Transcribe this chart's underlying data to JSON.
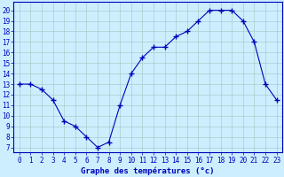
{
  "hours": [
    0,
    1,
    2,
    3,
    4,
    5,
    6,
    7,
    8,
    9,
    10,
    11,
    12,
    13,
    14,
    15,
    16,
    17,
    18,
    19,
    20,
    21,
    22,
    23
  ],
  "temps": [
    13,
    13,
    12.5,
    11.5,
    9.5,
    9,
    8,
    7,
    7.5,
    11,
    14,
    15.5,
    16.5,
    16.5,
    17.5,
    18,
    19,
    20,
    20,
    20,
    19,
    17,
    13,
    11.5
  ],
  "xlabel": "Graphe des températures (°c)",
  "ylabel_ticks": [
    7,
    8,
    9,
    10,
    11,
    12,
    13,
    14,
    15,
    16,
    17,
    18,
    19,
    20
  ],
  "ylim": [
    6.5,
    20.8
  ],
  "xlim": [
    -0.5,
    23.5
  ],
  "line_color": "#0000bb",
  "marker": "+",
  "markersize": 4,
  "bg_color": "#cceeff",
  "grid_color": "#aacccc",
  "label_color": "#0000bb",
  "tick_fontsize": 5.5,
  "xlabel_fontsize": 6.5
}
